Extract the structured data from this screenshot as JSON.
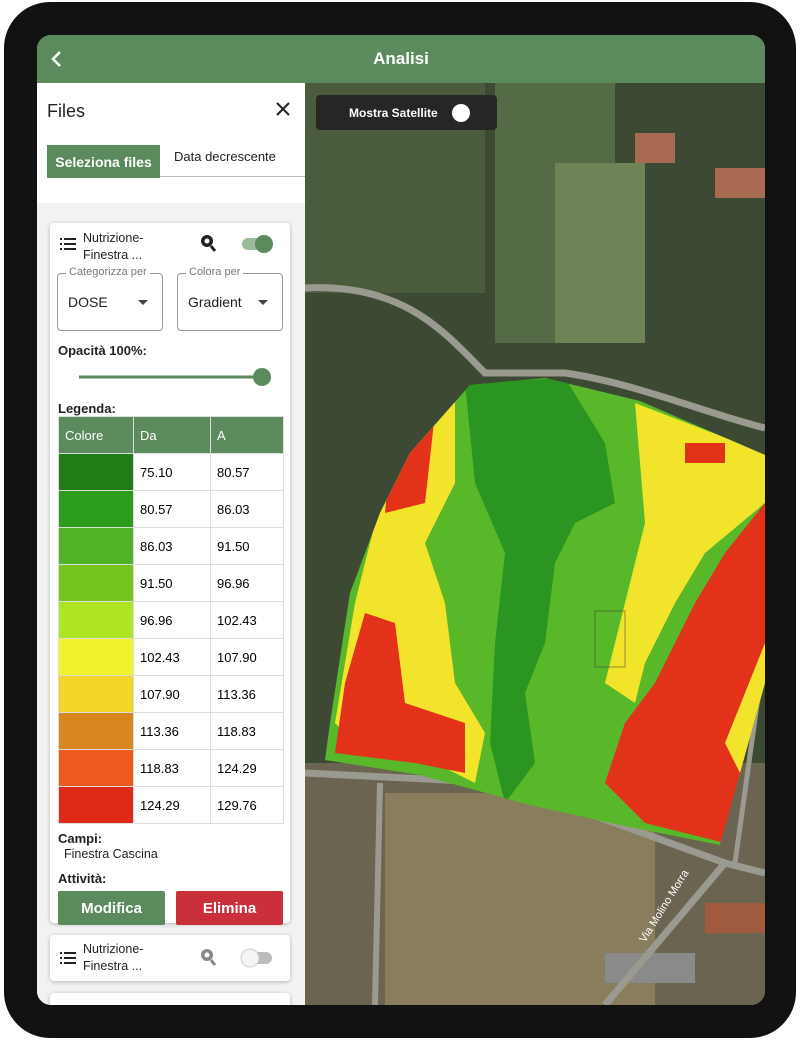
{
  "header": {
    "title": "Analisi"
  },
  "map": {
    "satellite_toggle": "Mostra Satellite",
    "street_label": "Via Molino Morra"
  },
  "panel": {
    "title": "Files",
    "tabs": [
      "Seleziona files",
      "Data decrescente"
    ],
    "cards": [
      {
        "name": "Nutrizione-Finestra ...",
        "categorize_label": "Categorizza per",
        "categorize_value": "DOSE",
        "color_label": "Colora per",
        "color_value": "Gradient",
        "opacity": "Opacità 100%:",
        "legend_title": "Legenda:",
        "legend": {
          "headers": [
            "Colore",
            "Da",
            "A"
          ],
          "rows": [
            {
              "color": "#1e7d16",
              "from": "75.10",
              "to": "80.57"
            },
            {
              "color": "#2a9e1a",
              "from": "80.57",
              "to": "86.03"
            },
            {
              "color": "#4fb526",
              "from": "86.03",
              "to": "91.50"
            },
            {
              "color": "#74c51f",
              "from": "91.50",
              "to": "96.96"
            },
            {
              "color": "#aee424",
              "from": "96.96",
              "to": "102.43"
            },
            {
              "color": "#f2f22e",
              "from": "102.43",
              "to": "107.90"
            },
            {
              "color": "#f4d626",
              "from": "107.90",
              "to": "113.36"
            },
            {
              "color": "#d9861e",
              "from": "113.36",
              "to": "118.83"
            },
            {
              "color": "#ee5a1e",
              "from": "118.83",
              "to": "124.29"
            },
            {
              "color": "#e02a18",
              "from": "124.29",
              "to": "129.76"
            }
          ]
        },
        "fields_label": "Campi:",
        "field": "Finestra Cascina",
        "activity_label": "Attività:",
        "buttons": [
          "Modifica",
          "Elimina"
        ]
      },
      {
        "name": "Nutrizione-Finestra ..."
      }
    ]
  }
}
